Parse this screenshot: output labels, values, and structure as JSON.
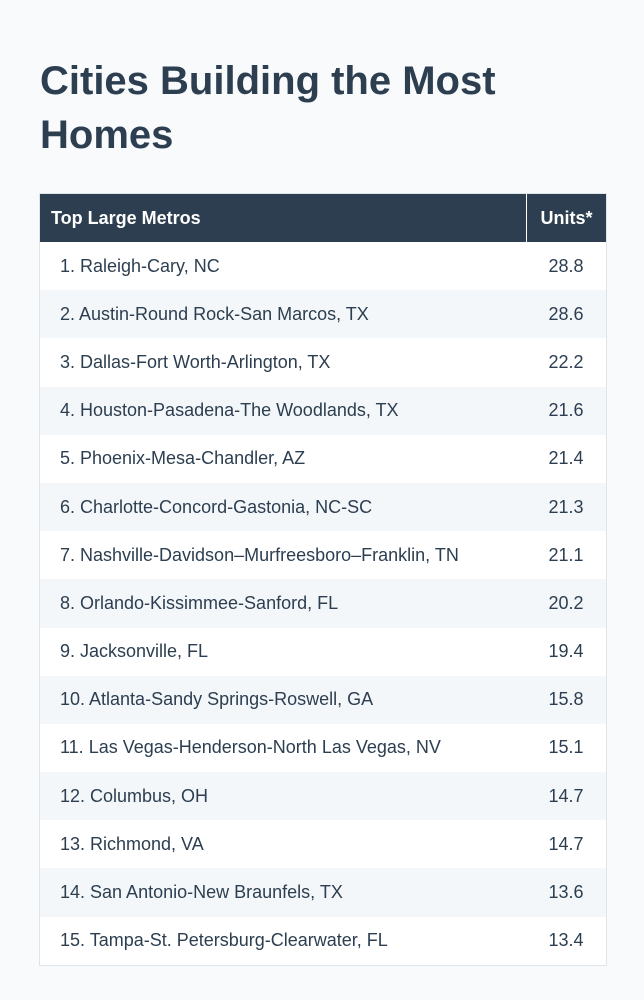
{
  "title": "Cities Building the Most Homes",
  "colors": {
    "header_bg": "#2c3e50",
    "header_text": "#ffffff",
    "title_text": "#2c3e50",
    "row_alt_bg": "#f4f7f9"
  },
  "table": {
    "headers": {
      "name": "Top Large Metros",
      "units": "Units*"
    },
    "rows": [
      {
        "name": "1. Raleigh-Cary, NC",
        "units": "28.8"
      },
      {
        "name": "2. Austin-Round Rock-San Marcos, TX",
        "units": "28.6"
      },
      {
        "name": "3. Dallas-Fort Worth-Arlington, TX",
        "units": "22.2"
      },
      {
        "name": "4. Houston-Pasadena-The Woodlands, TX",
        "units": "21.6"
      },
      {
        "name": "5. Phoenix-Mesa-Chandler, AZ",
        "units": "21.4"
      },
      {
        "name": "6. Charlotte-Concord-Gastonia, NC-SC",
        "units": "21.3"
      },
      {
        "name": "7. Nashville-Davidson–Murfreesboro–Franklin, TN",
        "units": "21.1"
      },
      {
        "name": "8. Orlando-Kissimmee-Sanford, FL",
        "units": "20.2"
      },
      {
        "name": "9. Jacksonville, FL",
        "units": "19.4"
      },
      {
        "name": "10. Atlanta-Sandy Springs-Roswell, GA",
        "units": "15.8"
      },
      {
        "name": "11. Las Vegas-Henderson-North Las Vegas, NV",
        "units": "15.1"
      },
      {
        "name": "12. Columbus, OH",
        "units": "14.7"
      },
      {
        "name": "13. Richmond, VA",
        "units": "14.7"
      },
      {
        "name": "14. San Antonio-New Braunfels, TX",
        "units": "13.6"
      },
      {
        "name": "15. Tampa-St. Petersburg-Clearwater, FL",
        "units": "13.4"
      }
    ]
  }
}
